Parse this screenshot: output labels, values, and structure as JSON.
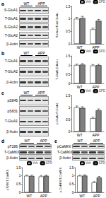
{
  "chart_data": [
    {
      "panel": "a",
      "type": "bar",
      "blot": {
        "columns": [
          "WT",
          "APP"
        ],
        "rows": [
          "S-GluA1",
          "T-GluA1",
          "S-GluA2",
          "T-GluA2",
          "β-Actin"
        ]
      },
      "ylabel": "Surface/Total GluA1",
      "categories": [
        "WT",
        "APP"
      ],
      "series": [
        {
          "name": "Veh",
          "color": "#ffffff",
          "values": [
            1.0,
            0.58
          ],
          "errors": [
            0.06,
            0.05
          ]
        },
        {
          "name": "SPD",
          "color": "#7f7f7f",
          "values": [
            1.03,
            0.92
          ],
          "errors": [
            0.07,
            0.06
          ]
        }
      ],
      "ylim": [
        0,
        1.5
      ],
      "yticks": [
        0,
        0.5,
        1,
        1.5
      ],
      "grid": false,
      "legend": "upper right"
    },
    {
      "panel": "b",
      "type": "bar",
      "blot": {
        "columns": [
          "WT",
          "APP"
        ],
        "rows": [
          "T-GluA1",
          "T-GluA2",
          "β-Actin"
        ]
      },
      "ylabel": "T-GluA1/β-Actin",
      "categories": [
        "WT",
        "APP"
      ],
      "series": [
        {
          "name": "Veh",
          "color": "#ffffff",
          "values": [
            1.0,
            0.97
          ],
          "errors": [
            0.05,
            0.06
          ]
        },
        {
          "name": "SPD",
          "color": "#7f7f7f",
          "values": [
            1.02,
            0.99
          ],
          "errors": [
            0.06,
            0.05
          ]
        }
      ],
      "ylim": [
        0,
        1.5
      ],
      "yticks": [
        0,
        0.5,
        1,
        1.5
      ],
      "grid": false,
      "legend": "upper right"
    },
    {
      "panel": "c",
      "type": "bar",
      "blot": {
        "columns": [
          "WT",
          "APP"
        ],
        "rows": [
          "pS845",
          "pS831",
          "T-GluA1",
          "β-Actin"
        ]
      },
      "ylabel": "p-GluA1/T-GluA1",
      "categories": [
        "WT",
        "APP"
      ],
      "series": [
        {
          "name": "Veh",
          "color": "#ffffff",
          "values": [
            1.0,
            0.55
          ],
          "errors": [
            0.06,
            0.05
          ]
        },
        {
          "name": "SPD",
          "color": "#7f7f7f",
          "values": [
            0.98,
            0.88
          ],
          "errors": [
            0.05,
            0.06
          ]
        }
      ],
      "ylim": [
        0,
        1.5
      ],
      "yticks": [
        0,
        0.5,
        1,
        1.5
      ],
      "grid": false,
      "legend": "upper right"
    },
    {
      "panel": "d",
      "type": "bar",
      "blot": {
        "columns": [
          "WT",
          "APP"
        ],
        "rows": [
          "pT286",
          "T-CaMKII",
          "β-Actin"
        ]
      },
      "ylabel": "pT286/T-CaMKII",
      "categories": [
        "WT",
        "APP"
      ],
      "series": [
        {
          "name": "Veh",
          "color": "#ffffff",
          "values": [
            1.0,
            0.96
          ],
          "errors": [
            0.05,
            0.06
          ]
        },
        {
          "name": "SPD",
          "color": "#7f7f7f",
          "values": [
            0.99,
            1.0
          ],
          "errors": [
            0.06,
            0.05
          ]
        }
      ],
      "ylim": [
        0,
        1.5
      ],
      "yticks": [
        0,
        0.5,
        1,
        1.5
      ],
      "grid": false,
      "legend": "upper right"
    },
    {
      "panel": "e",
      "type": "bar",
      "blot": {
        "columns": [
          "WT",
          "APP"
        ],
        "rows": [
          "pCaMKII",
          "T-CaMKII",
          "β-Actin"
        ]
      },
      "ylabel": "p-CaMKII/T-CaMKII",
      "categories": [
        "WT",
        "APP"
      ],
      "series": [
        {
          "name": "Veh",
          "color": "#ffffff",
          "values": [
            1.0,
            0.6
          ],
          "errors": [
            0.05,
            0.05
          ]
        },
        {
          "name": "SPD",
          "color": "#7f7f7f",
          "values": [
            1.01,
            0.9
          ],
          "errors": [
            0.06,
            0.06
          ]
        }
      ],
      "ylim": [
        0,
        1.5
      ],
      "yticks": [
        0,
        0.5,
        1,
        1.5
      ],
      "grid": false,
      "legend": "upper right"
    }
  ]
}
